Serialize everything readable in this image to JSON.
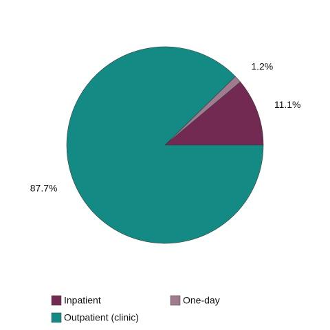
{
  "chart_data": {
    "type": "pie",
    "categories": [
      "Inpatient",
      "One-day",
      "Outpatient (clinic)"
    ],
    "values": [
      11.1,
      1.2,
      87.7
    ],
    "value_labels": [
      "11.1%",
      "1.2%",
      "87.7%"
    ],
    "colors": [
      "#722a53",
      "#9e7b8f",
      "#148a85"
    ]
  }
}
